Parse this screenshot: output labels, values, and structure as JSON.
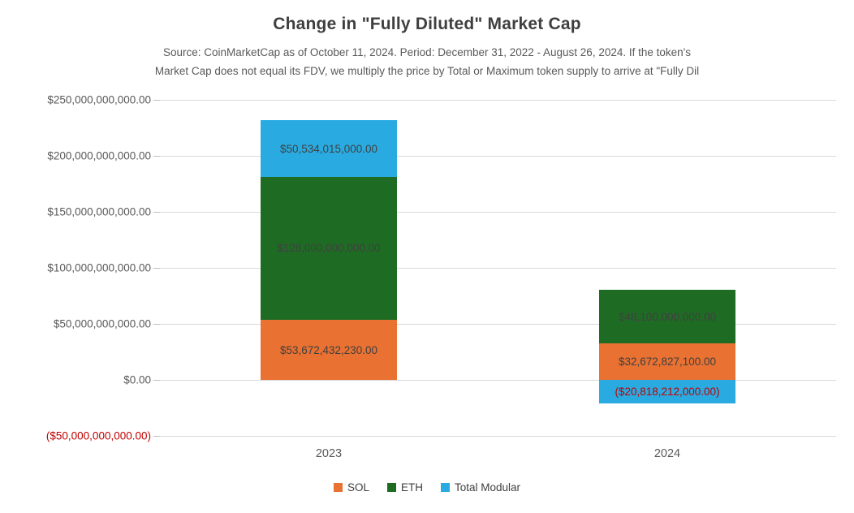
{
  "header": {
    "title": "Change in \"Fully Diluted\" Market Cap",
    "subtitle_line1": "Source: CoinMarketCap as of October 11, 2024. Period: December 31, 2022 - August 26, 2024. If the token's",
    "subtitle_line2": "Market Cap does not equal its FDV, we multiply the price by Total or Maximum token supply to arrive at \"Fully Dil"
  },
  "colors": {
    "background": "#FFFFFF",
    "title_text": "#3F3F3F",
    "subtitle_text": "#595959",
    "axis_label": "#595959",
    "negative_text": "#C00000",
    "gridline": "#D9D9D9",
    "data_label": "#404040",
    "sol_orange": "#E97132",
    "eth_green": "#1E6C24",
    "modular_blue": "#29ABE2"
  },
  "chart_data": {
    "type": "bar",
    "stacked": true,
    "title": "Change in \"Fully Diluted\" Market Cap",
    "categories": [
      "2023",
      "2024"
    ],
    "series": [
      {
        "name": "SOL",
        "color": "#E97132",
        "values": [
          53672432230,
          32672827100
        ],
        "labels": [
          "$53,672,432,230.00",
          "$32,672,827,100.00"
        ]
      },
      {
        "name": "ETH",
        "color": "#1E6C24",
        "values": [
          128000000000,
          48100000000
        ],
        "labels": [
          "$128,000,000,000.00",
          "$48,100,000,000.00"
        ]
      },
      {
        "name": "Total Modular",
        "color": "#29ABE2",
        "values": [
          50534015000,
          -20818212000
        ],
        "labels": [
          "$50,534,015,000.00",
          "($20,818,212,000.00)"
        ]
      }
    ],
    "y_axis": {
      "min": -50000000000,
      "max": 250000000000,
      "step": 50000000000,
      "tick_labels": [
        "$250,000,000,000.00",
        "$200,000,000,000.00",
        "$150,000,000,000.00",
        "$100,000,000,000.00",
        "$50,000,000,000.00",
        "$0.00",
        "($50,000,000,000.00)"
      ]
    },
    "grid": true,
    "legend_position": "bottom",
    "legend": [
      "SOL",
      "ETH",
      "Total Modular"
    ]
  }
}
